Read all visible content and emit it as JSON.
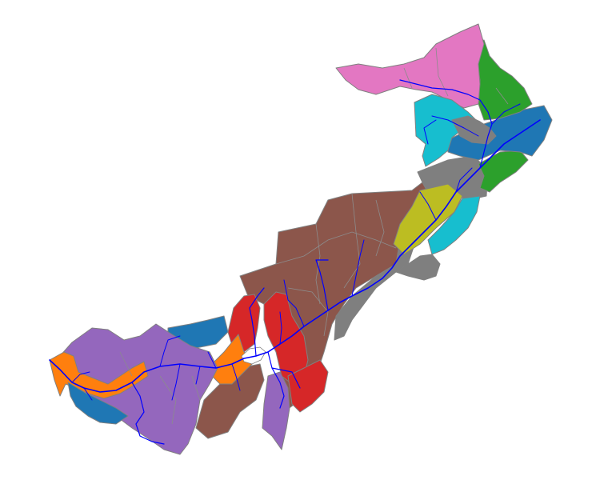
{
  "map": {
    "background": "#ffffff",
    "boundary_color": "#808080",
    "river_color": "#0000ff",
    "lake_color": "#ffffff",
    "palette": {
      "brown": "#8c564b",
      "purple": "#9467bd",
      "orange": "#ff7f0e",
      "red": "#d62728",
      "blue": "#1f77b4",
      "gray": "#7f7f7f",
      "olive": "#bcbd22",
      "cyan": "#17becf",
      "green": "#2ca02c",
      "pink": "#e377c2"
    }
  }
}
